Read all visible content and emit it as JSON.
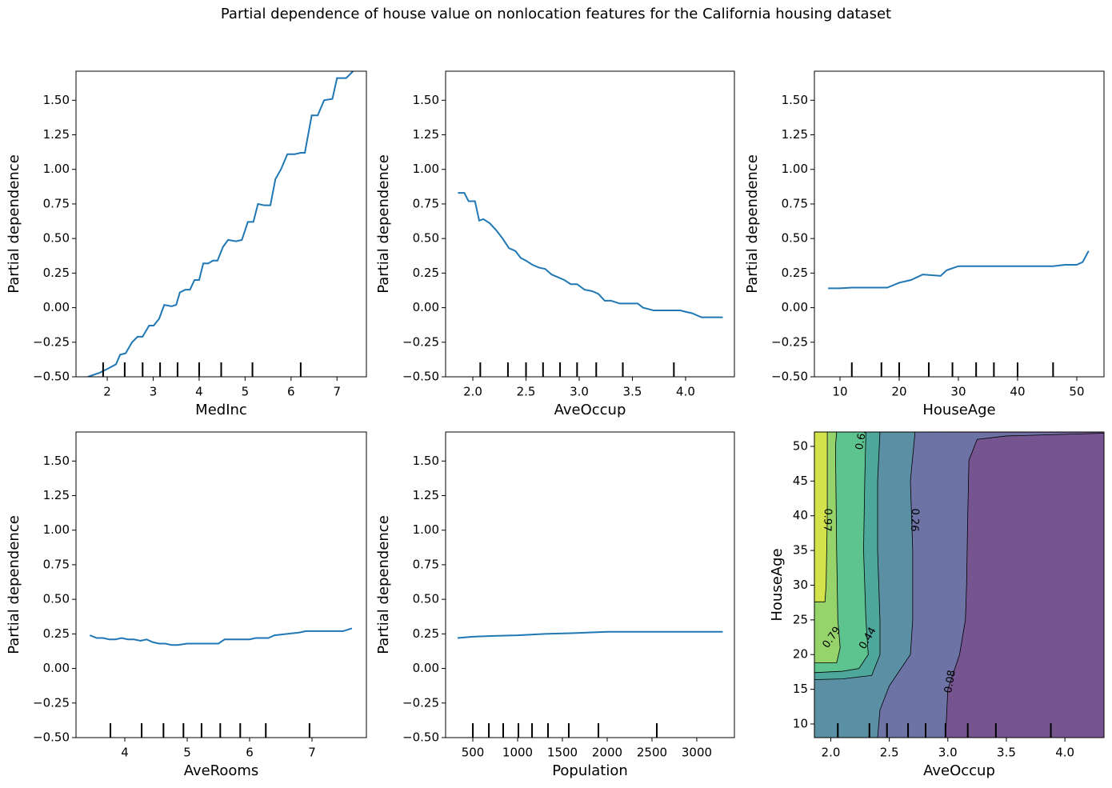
{
  "title": "Partial dependence of house value on nonlocation features for the California housing dataset",
  "chart_data": [
    {
      "type": "line",
      "xlabel": "MedInc",
      "ylabel": "Partial dependence",
      "color": "#1f77b4",
      "x": [
        1.58,
        1.84,
        2.02,
        2.19,
        2.28,
        2.4,
        2.54,
        2.66,
        2.77,
        2.91,
        3.01,
        3.13,
        3.24,
        3.4,
        3.5,
        3.58,
        3.7,
        3.8,
        3.9,
        4.0,
        4.09,
        4.2,
        4.3,
        4.4,
        4.52,
        4.63,
        4.8,
        4.93,
        5.06,
        5.18,
        5.28,
        5.42,
        5.55,
        5.66,
        5.78,
        5.92,
        6.08,
        6.21,
        6.3,
        6.45,
        6.58,
        6.72,
        6.9,
        7.0,
        7.2,
        7.35
      ],
      "values": [
        -0.5,
        -0.47,
        -0.44,
        -0.41,
        -0.34,
        -0.33,
        -0.25,
        -0.21,
        -0.21,
        -0.13,
        -0.13,
        -0.08,
        0.02,
        0.01,
        0.02,
        0.11,
        0.13,
        0.13,
        0.2,
        0.2,
        0.32,
        0.32,
        0.34,
        0.34,
        0.44,
        0.49,
        0.48,
        0.49,
        0.62,
        0.62,
        0.75,
        0.74,
        0.74,
        0.93,
        1.0,
        1.11,
        1.11,
        1.12,
        1.12,
        1.39,
        1.39,
        1.5,
        1.51,
        1.66,
        1.66,
        1.71
      ],
      "deciles": [
        1.91,
        2.38,
        2.77,
        3.15,
        3.53,
        4.0,
        4.48,
        5.16,
        6.21
      ],
      "xlim": [
        1.32,
        7.64
      ],
      "xticks": [
        2,
        3,
        4,
        5,
        6,
        7
      ],
      "ylim": [
        -0.5,
        1.71
      ],
      "yticks": [
        {
          "value": -0.5,
          "label": "−0.50"
        },
        {
          "value": -0.25,
          "label": "−0.25"
        },
        {
          "value": 0,
          "label": "0.00"
        },
        {
          "value": 0.25,
          "label": "0.25"
        },
        {
          "value": 0.5,
          "label": "0.50"
        },
        {
          "value": 0.75,
          "label": "0.75"
        },
        {
          "value": 1,
          "label": "1.00"
        },
        {
          "value": 1.25,
          "label": "1.25"
        },
        {
          "value": 1.5,
          "label": "1.50"
        }
      ]
    },
    {
      "type": "line",
      "xlabel": "AveOccup",
      "ylabel": "Partial dependence",
      "color": "#1f77b4",
      "x": [
        1.86,
        1.92,
        1.96,
        2.02,
        2.06,
        2.1,
        2.16,
        2.22,
        2.28,
        2.34,
        2.4,
        2.45,
        2.5,
        2.56,
        2.62,
        2.68,
        2.74,
        2.8,
        2.86,
        2.92,
        2.98,
        3.05,
        3.12,
        3.18,
        3.24,
        3.3,
        3.38,
        3.46,
        3.55,
        3.6,
        3.7,
        3.8,
        3.88,
        3.95,
        4.0,
        4.06,
        4.15,
        4.25,
        4.35
      ],
      "values": [
        0.83,
        0.83,
        0.77,
        0.77,
        0.63,
        0.64,
        0.61,
        0.56,
        0.5,
        0.43,
        0.41,
        0.36,
        0.34,
        0.31,
        0.29,
        0.28,
        0.24,
        0.22,
        0.2,
        0.17,
        0.17,
        0.13,
        0.12,
        0.1,
        0.05,
        0.05,
        0.03,
        0.03,
        0.03,
        0.0,
        -0.02,
        -0.02,
        -0.02,
        -0.02,
        -0.03,
        -0.04,
        -0.07,
        -0.07,
        -0.07
      ],
      "deciles": [
        2.07,
        2.33,
        2.5,
        2.66,
        2.82,
        2.98,
        3.16,
        3.41,
        3.89
      ],
      "xlim": [
        1.744,
        4.459
      ],
      "xticks": [
        {
          "value": 2,
          "label": "2.0"
        },
        {
          "value": 2.5,
          "label": "2.5"
        },
        {
          "value": 3,
          "label": "3.0"
        },
        {
          "value": 3.5,
          "label": "3.5"
        },
        {
          "value": 4,
          "label": "4.0"
        }
      ],
      "ylim": [
        -0.5,
        1.71
      ],
      "yticks": [
        {
          "value": -0.5,
          "label": "−0.50"
        },
        {
          "value": -0.25,
          "label": "−0.25"
        },
        {
          "value": 0,
          "label": "0.00"
        },
        {
          "value": 0.25,
          "label": "0.25"
        },
        {
          "value": 0.5,
          "label": "0.50"
        },
        {
          "value": 0.75,
          "label": "0.75"
        },
        {
          "value": 1,
          "label": "1.00"
        },
        {
          "value": 1.25,
          "label": "1.25"
        },
        {
          "value": 1.5,
          "label": "1.50"
        }
      ]
    },
    {
      "type": "line",
      "xlabel": "HouseAge",
      "ylabel": "Partial dependence",
      "color": "#1f77b4",
      "x": [
        8,
        10,
        12,
        15,
        18,
        20,
        22,
        24,
        27,
        28,
        30,
        32,
        34,
        36,
        38,
        40,
        42,
        44,
        46,
        48,
        50,
        51,
        52
      ],
      "values": [
        0.14,
        0.14,
        0.145,
        0.145,
        0.145,
        0.18,
        0.2,
        0.24,
        0.23,
        0.27,
        0.3,
        0.3,
        0.3,
        0.3,
        0.3,
        0.3,
        0.3,
        0.3,
        0.3,
        0.31,
        0.31,
        0.33,
        0.41
      ],
      "deciles": [
        12,
        17,
        20,
        25,
        29,
        33,
        36,
        40,
        46
      ],
      "xlim": [
        5.68,
        54.6
      ],
      "xticks": [
        10,
        20,
        30,
        40,
        50
      ],
      "ylim": [
        -0.5,
        1.71
      ],
      "yticks": [
        {
          "value": -0.5,
          "label": "−0.50"
        },
        {
          "value": -0.25,
          "label": "−0.25"
        },
        {
          "value": 0,
          "label": "0.00"
        },
        {
          "value": 0.25,
          "label": "0.25"
        },
        {
          "value": 0.5,
          "label": "0.50"
        },
        {
          "value": 0.75,
          "label": "0.75"
        },
        {
          "value": 1,
          "label": "1.00"
        },
        {
          "value": 1.25,
          "label": "1.25"
        },
        {
          "value": 1.5,
          "label": "1.50"
        }
      ]
    },
    {
      "type": "line",
      "xlabel": "AveRooms",
      "ylabel": "Partial dependence",
      "color": "#1f77b4",
      "x": [
        3.44,
        3.55,
        3.65,
        3.75,
        3.85,
        3.95,
        4.05,
        4.15,
        4.25,
        4.35,
        4.45,
        4.55,
        4.65,
        4.75,
        4.85,
        5.0,
        5.2,
        5.3,
        5.5,
        5.6,
        5.8,
        6.0,
        6.1,
        6.3,
        6.4,
        6.6,
        6.8,
        6.9,
        7.2,
        7.5,
        7.64
      ],
      "values": [
        0.24,
        0.22,
        0.22,
        0.21,
        0.21,
        0.22,
        0.21,
        0.21,
        0.2,
        0.21,
        0.19,
        0.18,
        0.18,
        0.17,
        0.17,
        0.18,
        0.18,
        0.18,
        0.18,
        0.21,
        0.21,
        0.21,
        0.22,
        0.22,
        0.24,
        0.25,
        0.26,
        0.27,
        0.27,
        0.27,
        0.29
      ],
      "deciles": [
        3.77,
        4.27,
        4.62,
        4.94,
        5.23,
        5.53,
        5.85,
        6.26,
        6.96
      ],
      "xlim": [
        3.218,
        7.872
      ],
      "xticks": [
        4,
        5,
        6,
        7
      ],
      "ylim": [
        -0.5,
        1.71
      ],
      "yticks": [
        {
          "value": -0.5,
          "label": "−0.50"
        },
        {
          "value": -0.25,
          "label": "−0.25"
        },
        {
          "value": 0,
          "label": "0.00"
        },
        {
          "value": 0.25,
          "label": "0.25"
        },
        {
          "value": 0.5,
          "label": "0.50"
        },
        {
          "value": 0.75,
          "label": "0.75"
        },
        {
          "value": 1,
          "label": "1.00"
        },
        {
          "value": 1.25,
          "label": "1.25"
        },
        {
          "value": 1.5,
          "label": "1.50"
        }
      ]
    },
    {
      "type": "line",
      "xlabel": "Population",
      "ylabel": "Partial dependence",
      "color": "#1f77b4",
      "x": [
        330,
        500,
        700,
        1000,
        1300,
        1600,
        2000,
        2400,
        2800,
        3290
      ],
      "values": [
        0.22,
        0.23,
        0.235,
        0.24,
        0.25,
        0.255,
        0.265,
        0.265,
        0.265,
        0.265
      ],
      "deciles": [
        500,
        679,
        839,
        1009,
        1161,
        1339,
        1571,
        1902,
        2554
      ],
      "xlim": [
        196,
        3420
      ],
      "xticks": [
        500,
        1000,
        1500,
        2000,
        2500,
        3000
      ],
      "ylim": [
        -0.5,
        1.71
      ],
      "yticks": [
        {
          "value": -0.5,
          "label": "−0.50"
        },
        {
          "value": -0.25,
          "label": "−0.25"
        },
        {
          "value": 0,
          "label": "0.00"
        },
        {
          "value": 0.25,
          "label": "0.25"
        },
        {
          "value": 0.5,
          "label": "0.50"
        },
        {
          "value": 0.75,
          "label": "0.75"
        },
        {
          "value": 1,
          "label": "1.00"
        },
        {
          "value": 1.25,
          "label": "1.25"
        },
        {
          "value": 1.5,
          "label": "1.50"
        }
      ]
    },
    {
      "type": "contour",
      "xlabel": "AveOccup",
      "ylabel": "HouseAge",
      "base_color": "#765490",
      "levels": [
        {
          "level": 0.08,
          "color": "#6d74a5",
          "x": [
            4.33,
            3.5,
            3.25,
            3.18,
            3.17,
            3.16,
            3.15,
            3.1,
            3.0,
            2.98
          ],
          "y": [
            51.9,
            51.5,
            51,
            48,
            40,
            30,
            25,
            20,
            15,
            8.04
          ]
        },
        {
          "level": 0.26,
          "color": "#5b8fa3",
          "x": [
            2.72,
            2.68,
            2.7,
            2.7,
            2.68,
            2.5,
            2.42,
            2.4
          ],
          "y": [
            52.07,
            45,
            35,
            25,
            20,
            15.5,
            12,
            8.04
          ]
        },
        {
          "level": 0.44,
          "color": "#4ea79b",
          "x": [
            2.42,
            2.4,
            2.4,
            2.42,
            2.42,
            2.35,
            2.1,
            1.86
          ],
          "y": [
            52.07,
            45,
            35,
            25,
            20,
            17,
            16.5,
            16.4
          ]
        },
        {
          "level": 0.62,
          "color": "#5ec48f",
          "x": [
            2.3,
            2.29,
            2.28,
            2.3,
            2.32,
            2.24,
            2.1,
            1.86
          ],
          "y": [
            52.07,
            45,
            35,
            25,
            20,
            18,
            17.6,
            17.4
          ]
        },
        {
          "level": 0.79,
          "color": "#96d36b",
          "x": [
            2.05,
            2.04,
            2.05,
            2.06,
            2.08,
            2.05,
            1.86
          ],
          "y": [
            52.07,
            50,
            35,
            25,
            21,
            18.8,
            18.8
          ]
        },
        {
          "level": 0.97,
          "color": "#d4e34b",
          "x": [
            1.97,
            1.97,
            1.96,
            1.95,
            1.86
          ],
          "y": [
            52.07,
            40,
            30,
            27.6,
            27.6
          ]
        }
      ],
      "deciles": [
        2.06,
        2.33,
        2.48,
        2.66,
        2.81,
        2.98,
        3.17,
        3.41,
        3.88
      ],
      "xlim": [
        1.86,
        4.334
      ],
      "xticks": [
        {
          "value": 2,
          "label": "2.0"
        },
        {
          "value": 2.5,
          "label": "2.5"
        },
        {
          "value": 3,
          "label": "3.0"
        },
        {
          "value": 3.5,
          "label": "3.5"
        },
        {
          "value": 4,
          "label": "4.0"
        }
      ],
      "ylim": [
        8.04,
        52.07
      ],
      "yticks": [
        10,
        15,
        20,
        25,
        30,
        35,
        40,
        45,
        50
      ]
    }
  ]
}
